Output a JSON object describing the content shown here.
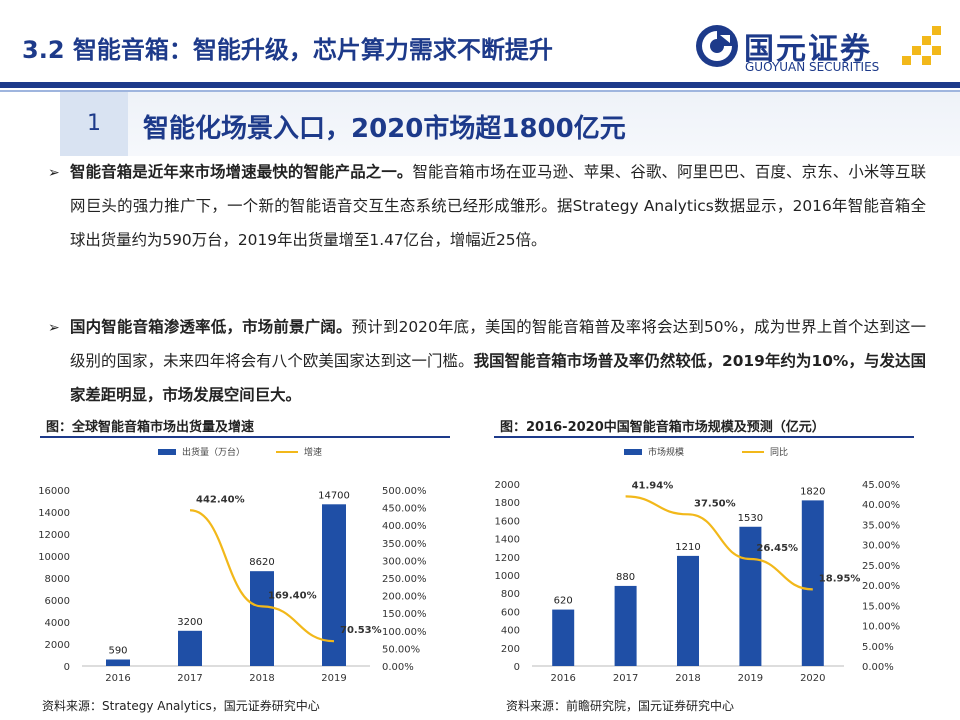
{
  "header": {
    "title": "3.2 智能音箱：智能升级，芯片算力需求不断提升",
    "logo_cn": "国元证券",
    "logo_en": "GUOYUAN SECURITIES",
    "brand_color": "#1d3a8a",
    "accent_color": "#f2b81a"
  },
  "section": {
    "number": "1",
    "title": "智能化场景入口，2020市场超1800亿元"
  },
  "bullets": [
    {
      "marker": "➢",
      "bold_lead": "智能音箱是近年来市场增速最快的智能产品之一。",
      "text": "智能音箱市场在亚马逊、苹果、谷歌、阿里巴巴、百度、京东、小米等互联网巨头的强力推广下，一个新的智能语音交互生态系统已经形成雏形。据Strategy Analytics数据显示，2016年智能音箱全球出货量约为590万台，2019年出货量增至1.47亿台，增幅近25倍。"
    },
    {
      "marker": "➢",
      "bold_lead": "国内智能音箱渗透率低，市场前景广阔。",
      "text": "预计到2020年底，美国的智能音箱普及率将会达到50%，成为世界上首个达到这一级别的国家，未来四年将会有八个欧美国家达到这一门槛。",
      "bold_tail": "我国智能音箱市场普及率仍然较低，2019年约为10%，与发达国家差距明显，市场发展空间巨大。"
    }
  ],
  "chart_data": [
    {
      "type": "bar",
      "title": "图：全球智能音箱市场出货量及增速",
      "categories": [
        "2016",
        "2017",
        "2018",
        "2019"
      ],
      "series": [
        {
          "name": "出货量（万台）",
          "kind": "bar",
          "axis": "left",
          "color": "#1f4fa6",
          "values": [
            590,
            3200,
            8620,
            14700
          ],
          "labels": [
            "590",
            "3200",
            "8620",
            "14700"
          ]
        },
        {
          "name": "增速",
          "kind": "line",
          "axis": "right",
          "color": "#f2b81a",
          "values": [
            null,
            442.4,
            169.4,
            70.53
          ],
          "labels": [
            "",
            "442.40%",
            "169.40%",
            "70.53%"
          ]
        }
      ],
      "y_left": {
        "min": 0,
        "max": 16000,
        "step": 2000,
        "ticks": [
          "0",
          "2000",
          "4000",
          "6000",
          "8000",
          "10000",
          "12000",
          "14000",
          "16000"
        ]
      },
      "y_right": {
        "min": 0,
        "max": 500,
        "step": 50,
        "ticks": [
          "0.00%",
          "50.00%",
          "100.00%",
          "150.00%",
          "200.00%",
          "250.00%",
          "300.00%",
          "350.00%",
          "400.00%",
          "450.00%",
          "500.00%"
        ]
      },
      "legend": "top",
      "source": "资料来源：Strategy Analytics，国元证券研究中心"
    },
    {
      "type": "bar",
      "title": "图：2016-2020中国智能音箱市场规模及预测（亿元）",
      "categories": [
        "2016",
        "2017",
        "2018",
        "2019",
        "2020"
      ],
      "series": [
        {
          "name": "市场规模",
          "kind": "bar",
          "axis": "left",
          "color": "#1f4fa6",
          "values": [
            620,
            880,
            1210,
            1530,
            1820
          ],
          "labels": [
            "620",
            "880",
            "1210",
            "1530",
            "1820"
          ]
        },
        {
          "name": "同比",
          "kind": "line",
          "axis": "right",
          "color": "#f2b81a",
          "values": [
            null,
            41.94,
            37.5,
            26.45,
            18.95
          ],
          "labels": [
            "",
            "41.94%",
            "37.50%",
            "26.45%",
            "18.95%"
          ]
        }
      ],
      "y_left": {
        "min": 0,
        "max": 2000,
        "step": 200,
        "ticks": [
          "0",
          "200",
          "400",
          "600",
          "800",
          "1000",
          "1200",
          "1400",
          "1600",
          "1800",
          "2000"
        ]
      },
      "y_right": {
        "min": 0,
        "max": 45,
        "step": 5,
        "ticks": [
          "0.00%",
          "5.00%",
          "10.00%",
          "15.00%",
          "20.00%",
          "25.00%",
          "30.00%",
          "35.00%",
          "40.00%",
          "45.00%"
        ]
      },
      "legend": "top",
      "source": "资料来源：前瞻研究院，国元证券研究中心"
    }
  ]
}
